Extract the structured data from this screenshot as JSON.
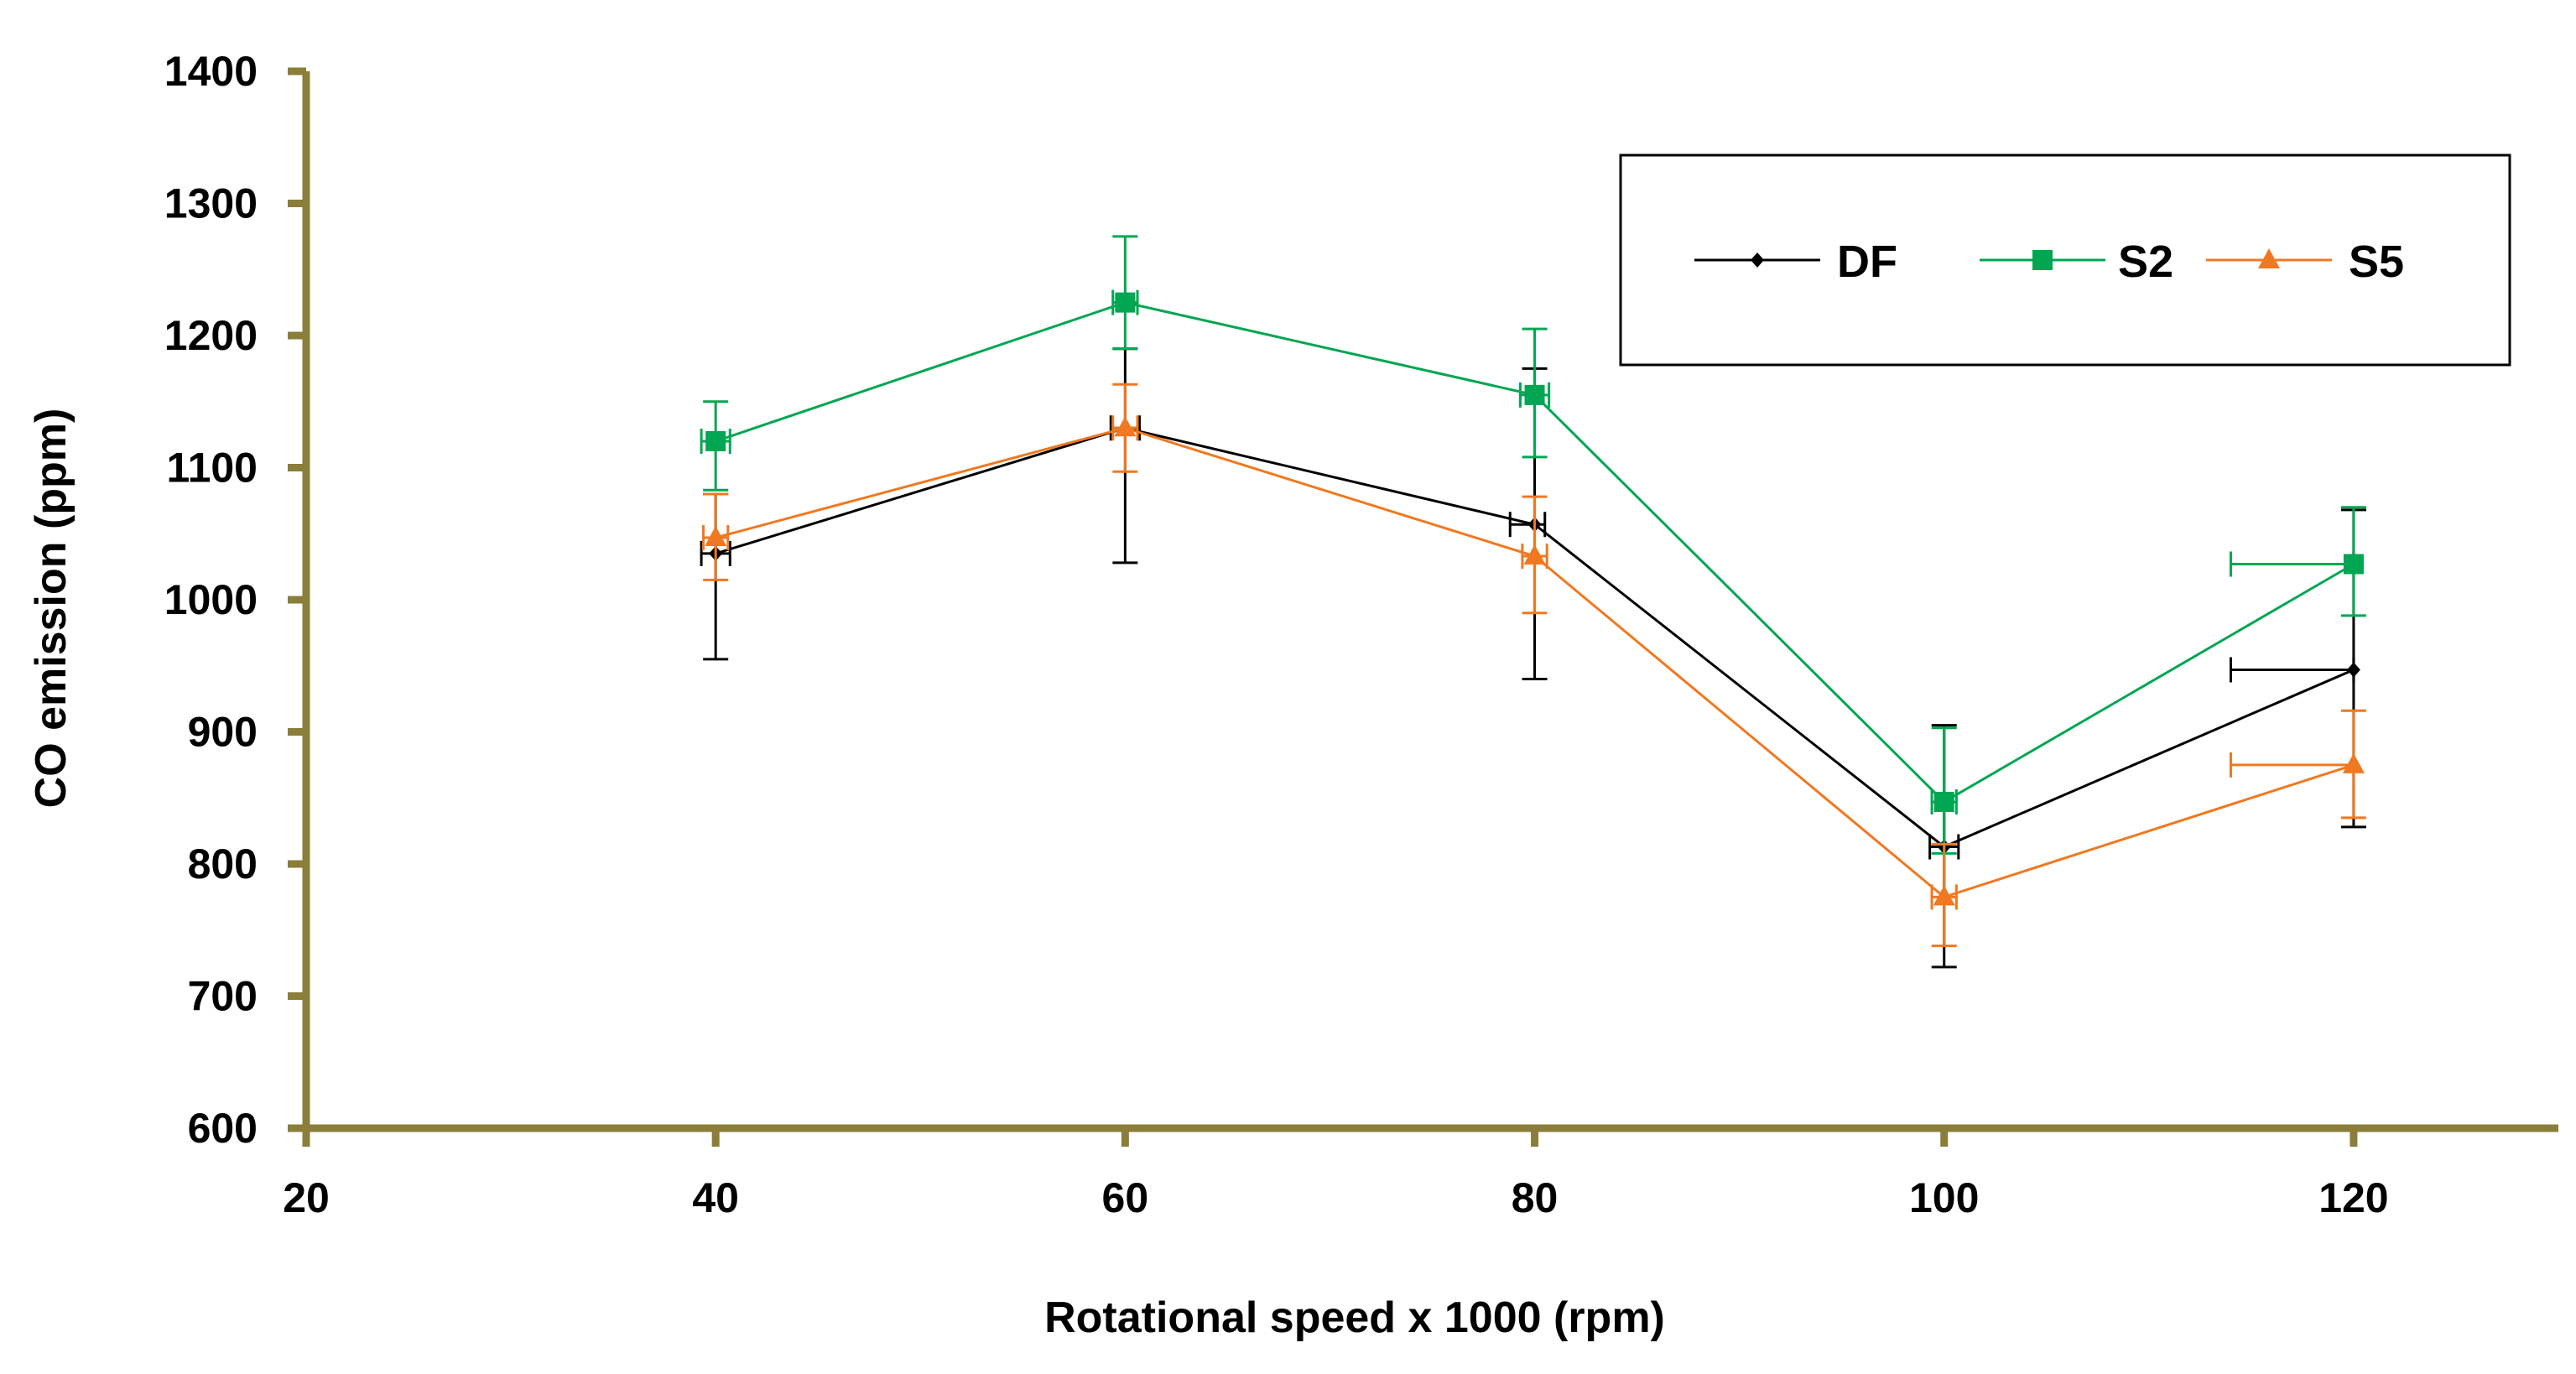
{
  "chart_data": {
    "type": "line",
    "title": "",
    "xlabel": "Rotational speed x 1000 (rpm)",
    "ylabel": "CO emission (ppm)",
    "xlim": [
      20,
      130
    ],
    "ylim": [
      600,
      1400
    ],
    "xticks": [
      20,
      40,
      60,
      80,
      100,
      120
    ],
    "yticks": [
      600,
      700,
      800,
      900,
      1000,
      1100,
      1200,
      1300,
      1400
    ],
    "grid": false,
    "legend_position": "top-right",
    "axis_color": "#8B7D3A",
    "series": [
      {
        "name": "DF",
        "color": "#000000",
        "marker": "diamond",
        "x": [
          40,
          60,
          80,
          100,
          120
        ],
        "y": [
          1035,
          1130,
          1057,
          813,
          947
        ],
        "yerr_low": [
          955,
          1028,
          940,
          722,
          828
        ],
        "yerr_high": [
          1080,
          1190,
          1175,
          905,
          1068
        ],
        "xerr_low": [
          39.3,
          59.3,
          78.8,
          99.3,
          114.0
        ],
        "xerr_high": [
          40.7,
          60.7,
          80.5,
          100.7,
          120.0
        ]
      },
      {
        "name": "S2",
        "color": "#00A651",
        "marker": "square",
        "x": [
          40,
          60,
          80,
          100,
          120
        ],
        "y": [
          1120,
          1225,
          1155,
          847,
          1027
        ],
        "yerr_low": [
          1083,
          1190,
          1108,
          808,
          988
        ],
        "yerr_high": [
          1150,
          1275,
          1205,
          903,
          1070
        ],
        "xerr_low": [
          39.3,
          59.4,
          79.3,
          99.4,
          114.0
        ],
        "xerr_high": [
          40.7,
          60.6,
          80.7,
          100.6,
          120.0
        ]
      },
      {
        "name": "S5",
        "color": "#F07820",
        "marker": "triangle",
        "x": [
          40,
          60,
          80,
          100,
          120
        ],
        "y": [
          1047,
          1130,
          1033,
          775,
          875
        ],
        "yerr_low": [
          1015,
          1097,
          990,
          738,
          835
        ],
        "yerr_high": [
          1080,
          1163,
          1078,
          815,
          916
        ],
        "xerr_low": [
          39.4,
          59.4,
          79.4,
          99.4,
          114.0
        ],
        "xerr_high": [
          40.6,
          60.6,
          80.6,
          100.6,
          120.0
        ]
      }
    ]
  }
}
